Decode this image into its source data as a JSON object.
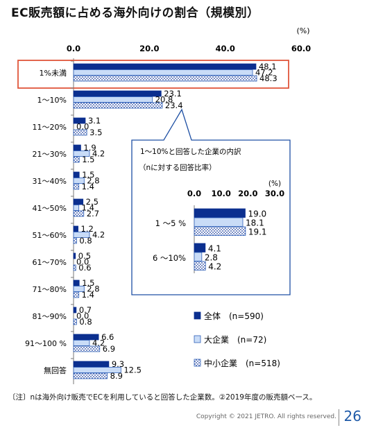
{
  "title": "EC販売額に占める海外向けの割合（規模別）",
  "unit": "(%)",
  "note": "〔注〕nは海外向け販売でECを利用していると回答した企業数。②2019年度の販売額ベース。",
  "copyright": "Copyright © 2021 JETRO. All rights reserved.",
  "page_number": "26",
  "colors": {
    "zentai": "#0b2f8f",
    "daikigyo": "#c9dcf7",
    "chusho": "#ffffff",
    "highlight": "#e0563a"
  },
  "chart_data": [
    {
      "type": "bar",
      "orientation": "horizontal",
      "xlim": [
        0,
        60
      ],
      "ticks": [
        "0.0",
        "20.0",
        "40.0",
        "60.0"
      ],
      "categories": [
        "1%未満",
        "1～10%",
        "11～20%",
        "21～30%",
        "31～40%",
        "41～50%",
        "51～60%",
        "61～70%",
        "71～80%",
        "81～90%",
        "91～100 %",
        "無回答"
      ],
      "highlighted_category": "1%未満",
      "series": [
        {
          "name": "全体　(n=590)",
          "values": [
            48.1,
            23.1,
            3.1,
            1.9,
            1.5,
            2.5,
            1.2,
            0.5,
            1.5,
            0.7,
            6.6,
            9.3
          ],
          "labels": [
            "48.1",
            "23.1",
            "3.1",
            "1.9",
            "1.5",
            "2.5",
            "1.2",
            "0.5",
            "1.5",
            "0.7",
            "6.6",
            "9.3"
          ]
        },
        {
          "name": "大企業　(n=72)",
          "values": [
            47.2,
            20.8,
            0.0,
            4.2,
            2.8,
            1.4,
            4.2,
            0.0,
            2.8,
            0.0,
            4.2,
            12.5
          ],
          "labels": [
            "47.2",
            "20.8",
            "0.0",
            "4.2",
            "2.8",
            "1.4",
            "4.2",
            "0.0",
            "2.8",
            "0.0",
            "4.2",
            "12.5"
          ]
        },
        {
          "name": "中小企業　(n=518)",
          "values": [
            48.3,
            23.4,
            3.5,
            1.5,
            1.4,
            2.7,
            0.8,
            0.6,
            1.4,
            0.8,
            6.9,
            8.9
          ],
          "labels": [
            "48.3",
            "23.4",
            "3.5",
            "1.5",
            "1.4",
            "2.7",
            "0.8",
            "0.6",
            "1.4",
            "0.8",
            "6.9",
            "8.9"
          ]
        }
      ],
      "legend_position": "bottom-right"
    },
    {
      "type": "bar",
      "orientation": "horizontal",
      "title": "1～10%と回答した企業の内訳",
      "subtitle": "（nに対する回答比率）",
      "unit": "(%)",
      "xlim": [
        0,
        30
      ],
      "ticks": [
        "0.0",
        "10.0",
        "20.0",
        "30.0"
      ],
      "categories": [
        "1 ～5 %",
        "6 ～10%"
      ],
      "series": [
        {
          "name": "全体",
          "values": [
            19.0,
            4.1
          ],
          "labels": [
            "19.0",
            "4.1"
          ]
        },
        {
          "name": "大企業",
          "values": [
            18.1,
            2.8
          ],
          "labels": [
            "18.1",
            "2.8"
          ]
        },
        {
          "name": "中小企業",
          "values": [
            19.1,
            4.2
          ],
          "labels": [
            "19.1",
            "4.2"
          ]
        }
      ]
    }
  ]
}
